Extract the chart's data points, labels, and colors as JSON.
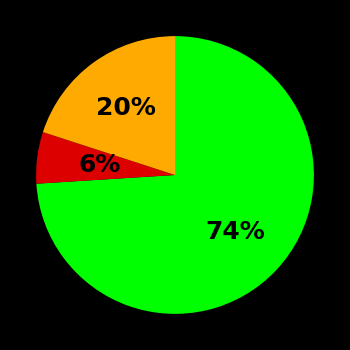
{
  "slices": [
    74,
    6,
    20
  ],
  "colors": [
    "#00ff00",
    "#dd0000",
    "#ffaa00"
  ],
  "labels": [
    "74%",
    "6%",
    "20%"
  ],
  "label_radii": [
    0.6,
    0.55,
    0.6
  ],
  "background_color": "#000000",
  "text_color": "#000000",
  "label_fontsize": 18,
  "label_fontweight": "bold",
  "startangle": 90,
  "counterclock": false,
  "figsize": [
    3.5,
    3.5
  ],
  "dpi": 100
}
